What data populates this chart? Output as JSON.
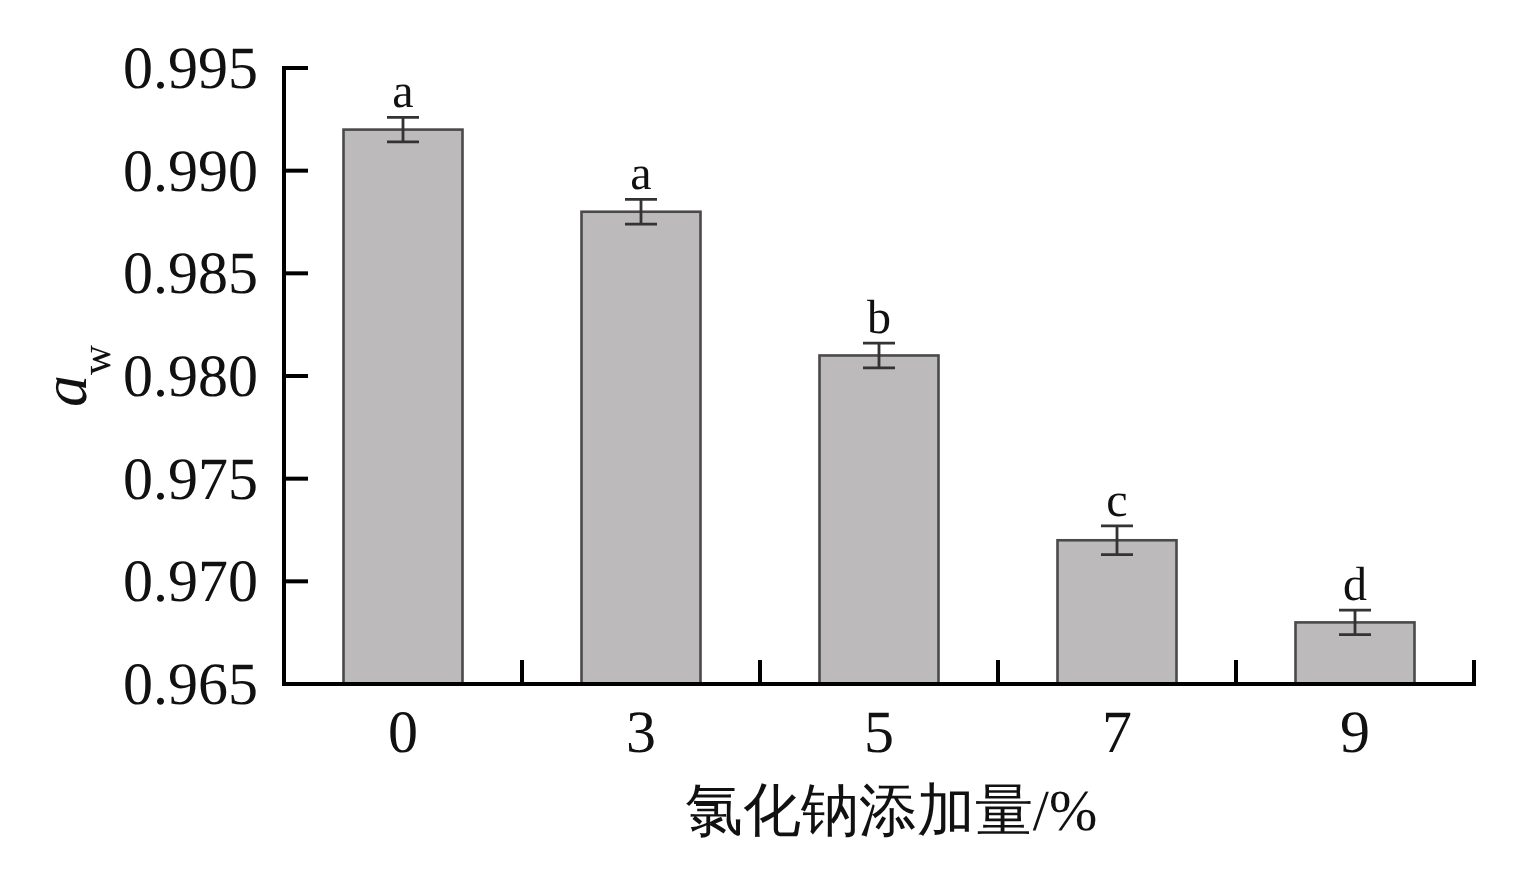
{
  "chart_data": {
    "type": "bar",
    "xlabel": "氯化钠添加量/%",
    "ylabel": "a$_{w}$",
    "categories": [
      "0",
      "3",
      "5",
      "7",
      "9"
    ],
    "values": [
      0.992,
      0.988,
      0.981,
      0.972,
      0.968
    ],
    "errors": [
      0.0006,
      0.0006,
      0.0006,
      0.0007,
      0.0006
    ],
    "color": "#bcbabb",
    "ylim": [
      0.965,
      0.995
    ],
    "yticks": [
      0.965,
      {
        "value": 0.97,
        "label": "0.970"
      },
      0.975,
      {
        "value": 0.98,
        "label": "0.980"
      },
      0.985,
      {
        "value": 0.99,
        "label": "0.990"
      },
      0.995
    ],
    "annotations": [
      {
        "text": "a",
        "x": "0",
        "y": 0.992
      },
      {
        "text": "a",
        "x": "3",
        "y": 0.988
      },
      {
        "text": "b",
        "x": "5",
        "y": 0.981
      },
      {
        "text": "c",
        "x": "7",
        "y": 0.972
      },
      {
        "text": "d",
        "x": "9",
        "y": 0.968
      }
    ]
  }
}
